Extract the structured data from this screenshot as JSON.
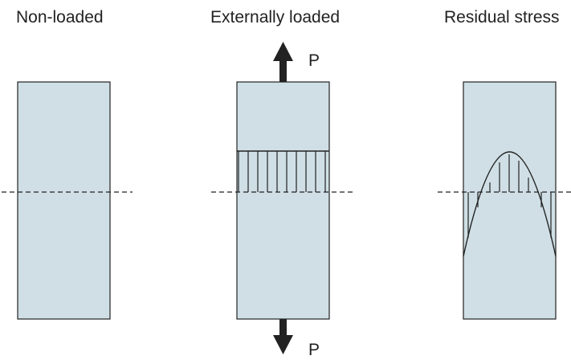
{
  "panels": [
    {
      "title": "Non-loaded"
    },
    {
      "title": "Externally loaded"
    },
    {
      "title": "Residual stress"
    }
  ],
  "force_label": "P",
  "colors": {
    "bar_fill": "#cfdfe5",
    "outline": "#222222",
    "text": "#222222"
  }
}
